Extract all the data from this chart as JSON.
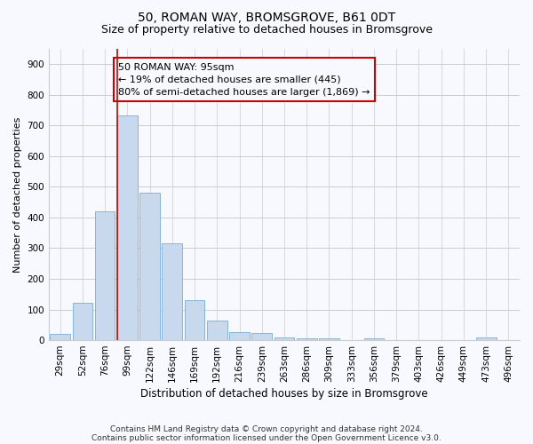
{
  "title1": "50, ROMAN WAY, BROMSGROVE, B61 0DT",
  "title2": "Size of property relative to detached houses in Bromsgrove",
  "xlabel": "Distribution of detached houses by size in Bromsgrove",
  "ylabel": "Number of detached properties",
  "categories": [
    "29sqm",
    "52sqm",
    "76sqm",
    "99sqm",
    "122sqm",
    "146sqm",
    "169sqm",
    "192sqm",
    "216sqm",
    "239sqm",
    "263sqm",
    "286sqm",
    "309sqm",
    "333sqm",
    "356sqm",
    "379sqm",
    "403sqm",
    "426sqm",
    "449sqm",
    "473sqm",
    "496sqm"
  ],
  "values": [
    20,
    122,
    420,
    732,
    480,
    315,
    130,
    65,
    25,
    22,
    10,
    5,
    5,
    0,
    5,
    0,
    0,
    0,
    0,
    10,
    0
  ],
  "bar_color": "#c8d9ee",
  "bar_edgecolor": "#7aadd4",
  "highlight_bar_index": 3,
  "highlight_color": "#cc0000",
  "annotation_line1": "50 ROMAN WAY: 95sqm",
  "annotation_line2": "← 19% of detached houses are smaller (445)",
  "annotation_line3": "80% of semi-detached houses are larger (1,869) →",
  "annotation_box_color": "#cc0000",
  "ylim": [
    0,
    950
  ],
  "yticks": [
    0,
    100,
    200,
    300,
    400,
    500,
    600,
    700,
    800,
    900
  ],
  "grid_color": "#cccccc",
  "background_color": "#f8f8ff",
  "footer1": "Contains HM Land Registry data © Crown copyright and database right 2024.",
  "footer2": "Contains public sector information licensed under the Open Government Licence v3.0.",
  "title1_fontsize": 10,
  "title2_fontsize": 9,
  "xlabel_fontsize": 8.5,
  "ylabel_fontsize": 8,
  "tick_fontsize": 7.5,
  "annotation_fontsize": 8,
  "footer_fontsize": 6.5
}
